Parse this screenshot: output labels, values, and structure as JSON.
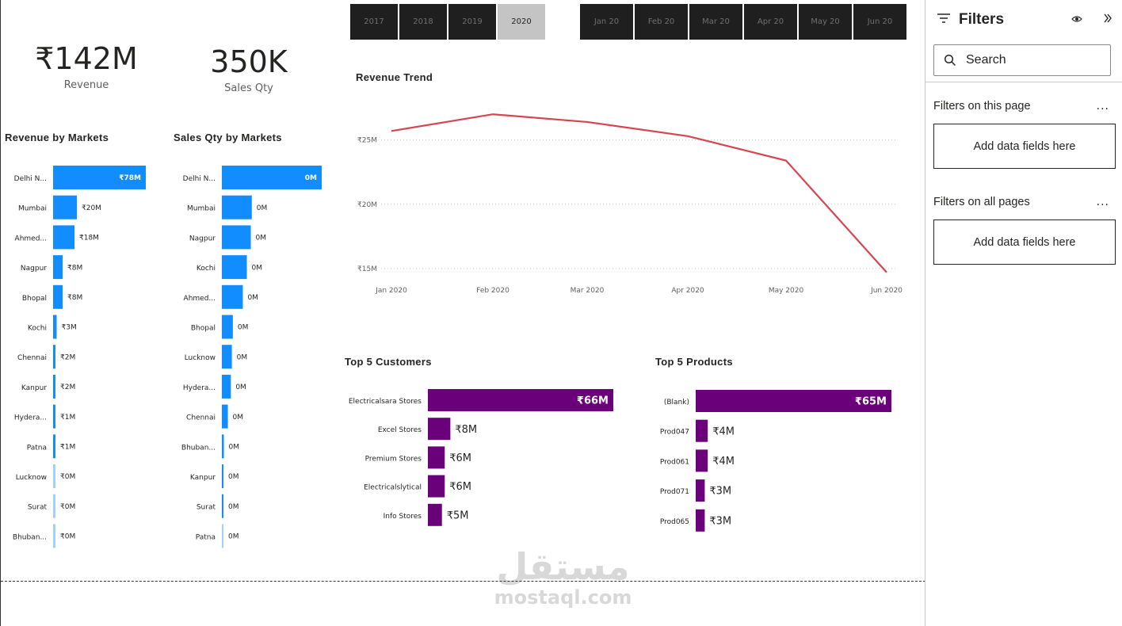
{
  "kpis": {
    "revenue": {
      "value": "₹142M",
      "label": "Revenue"
    },
    "sales_qty": {
      "value": "350K",
      "label": "Sales Qty"
    }
  },
  "year_slicer": {
    "items": [
      "2017",
      "2018",
      "2019",
      "2020"
    ],
    "selected": "2020"
  },
  "month_slicer": {
    "items": [
      "Jan 20",
      "Feb 20",
      "Mar 20",
      "Apr 20",
      "May 20",
      "Jun 20"
    ]
  },
  "colors": {
    "accent_blue": "#118DFF",
    "accent_purple": "#6B007B",
    "trend_red": "#D64550"
  },
  "chart_data": [
    {
      "type": "bar",
      "title": "Revenue by Markets",
      "orientation": "horizontal",
      "categories": [
        "Delhi N...",
        "Mumbai",
        "Ahmed...",
        "Nagpur",
        "Bhopal",
        "Kochi",
        "Chennai",
        "Kanpur",
        "Hydera...",
        "Patna",
        "Lucknow",
        "Surat",
        "Bhuban..."
      ],
      "values": [
        78,
        20,
        18,
        8,
        8,
        3,
        2,
        2,
        1,
        1,
        0,
        0,
        0
      ],
      "data_labels": [
        "₹78M",
        "₹20M",
        "₹18M",
        "₹8M",
        "₹8M",
        "₹3M",
        "₹2M",
        "₹2M",
        "₹1M",
        "₹1M",
        "₹0M",
        "₹0M",
        "₹0M"
      ],
      "unit": "₹M"
    },
    {
      "type": "bar",
      "title": "Sales Qty by Markets",
      "orientation": "horizontal",
      "categories": [
        "Delhi N...",
        "Mumbai",
        "Nagpur",
        "Kochi",
        "Ahmed...",
        "Bhopal",
        "Lucknow",
        "Hydera...",
        "Chennai",
        "Bhuban...",
        "Kanpur",
        "Surat",
        "Patna"
      ],
      "values": [
        100,
        30,
        29,
        25,
        21,
        11,
        10,
        9,
        6,
        2,
        1,
        1,
        0
      ],
      "data_labels": [
        "0M",
        "0M",
        "0M",
        "0M",
        "0M",
        "0M",
        "0M",
        "0M",
        "0M",
        "0M",
        "0M",
        "0M",
        "0M"
      ],
      "unit": "relative"
    },
    {
      "type": "line",
      "title": "Revenue Trend",
      "x": [
        "Jan 2020",
        "Feb 2020",
        "Mar 2020",
        "Apr 2020",
        "May 2020",
        "Jun 2020"
      ],
      "series": [
        {
          "values": [
            25.7,
            27.0,
            26.4,
            25.3,
            23.4,
            14.7
          ]
        }
      ],
      "y_ticks": [
        "₹15M",
        "₹20M",
        "₹25M"
      ],
      "y_tick_values": [
        15,
        20,
        25
      ],
      "ylim": [
        14.5,
        28
      ],
      "grid": true
    },
    {
      "type": "bar",
      "title": "Top 5 Customers",
      "orientation": "horizontal",
      "categories": [
        "Electricalsara Stores",
        "Excel Stores",
        "Premium Stores",
        "Electricalslytical",
        "Info Stores"
      ],
      "values": [
        66,
        8,
        6,
        6,
        5
      ],
      "data_labels": [
        "₹66M",
        "₹8M",
        "₹6M",
        "₹6M",
        "₹5M"
      ]
    },
    {
      "type": "bar",
      "title": "Top 5 Products",
      "orientation": "horizontal",
      "categories": [
        "(Blank)",
        "Prod047",
        "Prod061",
        "Prod071",
        "Prod065"
      ],
      "values": [
        65,
        4,
        4,
        3,
        3
      ],
      "data_labels": [
        "₹65M",
        "₹4M",
        "₹4M",
        "₹3M",
        "₹3M"
      ]
    }
  ],
  "watermark": {
    "arabic": "مستقل",
    "latin": "mostaql.com"
  },
  "filters_pane": {
    "title": "Filters",
    "search_placeholder": "Search",
    "this_page_label": "Filters on this page",
    "all_pages_label": "Filters on all pages",
    "add_fields_label": "Add data fields here",
    "more_label": "..."
  }
}
